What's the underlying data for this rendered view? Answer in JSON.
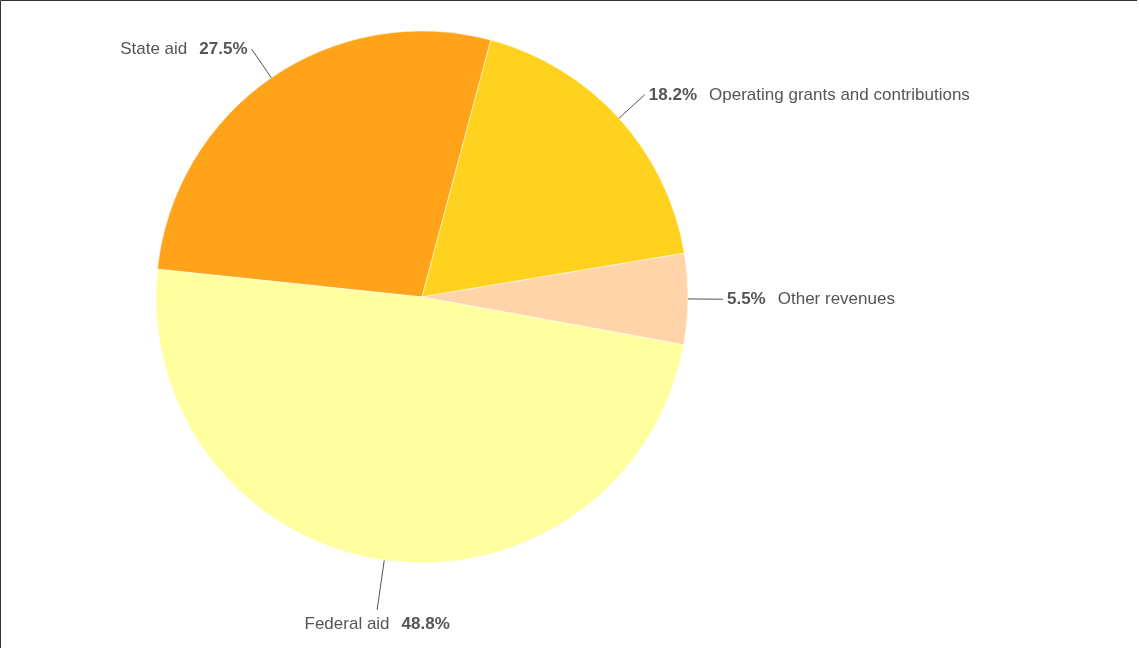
{
  "chart_data": {
    "type": "pie",
    "categories": [
      "State aid",
      "Operating grants and contributions",
      "Other revenues",
      "Federal aid"
    ],
    "values": [
      27.5,
      18.2,
      5.5,
      48.8
    ],
    "value_labels": [
      "27.5%",
      "18.2%",
      "5.5%",
      "48.8%"
    ],
    "colors": [
      "#ffa31a",
      "#ffd21f",
      "#ffd4a8",
      "#ffffa0"
    ]
  }
}
